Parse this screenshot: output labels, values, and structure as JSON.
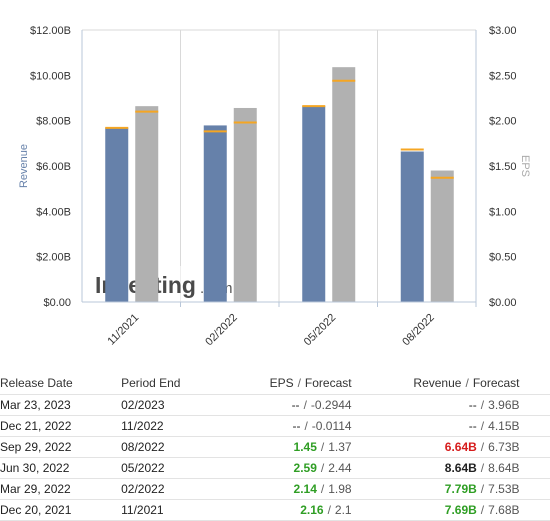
{
  "chart_data": {
    "type": "bar",
    "categories": [
      "11/2021",
      "02/2022",
      "05/2022",
      "08/2022"
    ],
    "left_axis": {
      "label": "Revenue",
      "ticks": [
        "$0.00",
        "$2.00B",
        "$4.00B",
        "$6.00B",
        "$8.00B",
        "$10.00B",
        "$12.00B"
      ],
      "ylim": [
        0,
        12
      ]
    },
    "right_axis": {
      "label": "EPS",
      "ticks": [
        "$0.00",
        "$0.50",
        "$1.00",
        "$1.50",
        "$2.00",
        "$2.50",
        "$3.00"
      ],
      "ylim": [
        0,
        3
      ]
    },
    "series": [
      {
        "name": "Revenue",
        "axis": "left",
        "color": "#6681aa",
        "values": [
          7.69,
          7.79,
          8.64,
          6.64
        ],
        "forecast": [
          7.68,
          7.53,
          8.64,
          6.73
        ]
      },
      {
        "name": "EPS",
        "axis": "right",
        "color": "#b1b1b1",
        "values": [
          2.16,
          2.14,
          2.59,
          1.45
        ],
        "forecast": [
          2.1,
          1.98,
          2.44,
          1.37
        ]
      }
    ],
    "forecast_marker_color": "#f5a623",
    "grid": "vertical"
  },
  "watermark": {
    "text": "Investing",
    "suffix": ".com"
  },
  "table": {
    "headers": {
      "release_date": "Release Date",
      "period_end": "Period End",
      "eps": "EPS",
      "eps_forecast": "Forecast",
      "revenue": "Revenue",
      "revenue_forecast": "Forecast",
      "separator": "/"
    },
    "rows": [
      {
        "release_date": "Mar 23, 2023",
        "period_end": "02/2023",
        "eps": "--",
        "eps_forecast": "-0.2944",
        "eps_status": "plain",
        "revenue": "--",
        "revenue_forecast": "3.96B",
        "revenue_status": "plain"
      },
      {
        "release_date": "Dec 21, 2022",
        "period_end": "11/2022",
        "eps": "--",
        "eps_forecast": "-0.0114",
        "eps_status": "plain",
        "revenue": "--",
        "revenue_forecast": "4.15B",
        "revenue_status": "plain"
      },
      {
        "release_date": "Sep 29, 2022",
        "period_end": "08/2022",
        "eps": "1.45",
        "eps_forecast": "1.37",
        "eps_status": "green",
        "revenue": "6.64B",
        "revenue_forecast": "6.73B",
        "revenue_status": "red"
      },
      {
        "release_date": "Jun 30, 2022",
        "period_end": "05/2022",
        "eps": "2.59",
        "eps_forecast": "2.44",
        "eps_status": "green",
        "revenue": "8.64B",
        "revenue_forecast": "8.64B",
        "revenue_status": "bold"
      },
      {
        "release_date": "Mar 29, 2022",
        "period_end": "02/2022",
        "eps": "2.14",
        "eps_forecast": "1.98",
        "eps_status": "green",
        "revenue": "7.79B",
        "revenue_forecast": "7.53B",
        "revenue_status": "green"
      },
      {
        "release_date": "Dec 20, 2021",
        "period_end": "11/2021",
        "eps": "2.16",
        "eps_forecast": "2.1",
        "eps_status": "green",
        "revenue": "7.69B",
        "revenue_forecast": "7.68B",
        "revenue_status": "green"
      }
    ]
  }
}
